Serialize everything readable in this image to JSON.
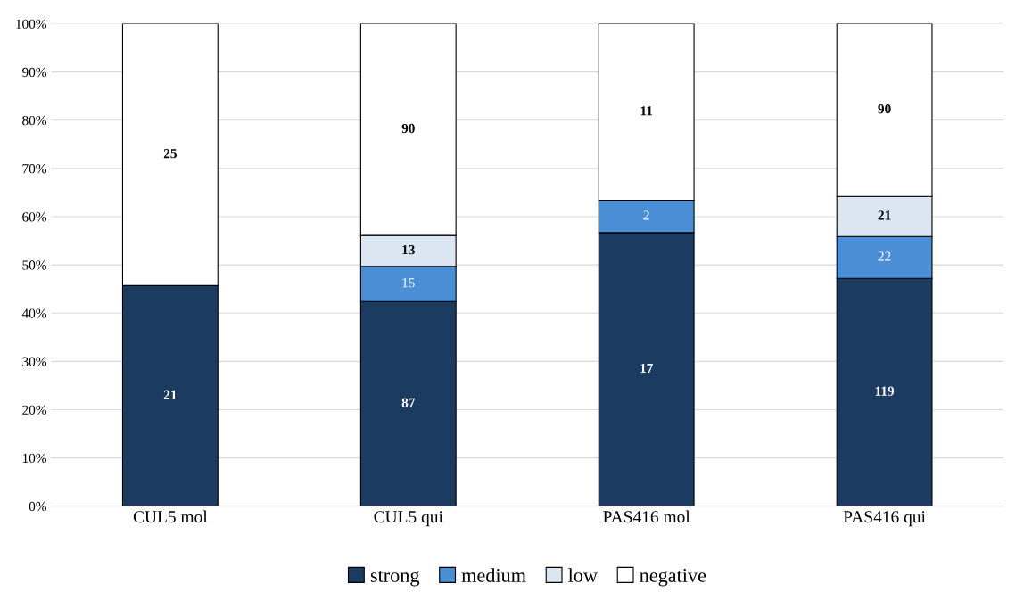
{
  "chart_data": {
    "type": "bar",
    "stacked": true,
    "categories": [
      "CUL5 mol",
      "CUL5 qui",
      "PAS416 mol",
      "PAS416 qui"
    ],
    "series": [
      {
        "name": "strong",
        "color": "#1b3b61",
        "values": [
          45.7,
          42.4,
          56.7,
          47.2
        ]
      },
      {
        "name": "medium",
        "color": "#4a8fd6",
        "values": [
          0,
          7.3,
          6.7,
          8.7
        ]
      },
      {
        "name": "low",
        "color": "#dce6f2",
        "values": [
          0,
          6.4,
          0,
          8.3
        ]
      },
      {
        "name": "negative",
        "color": "#ffffff",
        "values": [
          54.3,
          43.9,
          36.6,
          35.8
        ]
      }
    ],
    "annotations": [
      "21",
      "25",
      "87",
      "15",
      "13",
      "90",
      "17",
      "2",
      "11",
      "119",
      "22",
      "21",
      "90"
    ],
    "ylim": [
      0,
      100
    ],
    "yticks": [
      {
        "value": 0,
        "label": "0%"
      },
      {
        "value": 10,
        "label": "10%"
      },
      {
        "value": 20,
        "label": "20%"
      },
      {
        "value": 30,
        "label": "30%"
      },
      {
        "value": 40,
        "label": "40%"
      },
      {
        "value": 50,
        "label": "50%"
      },
      {
        "value": 60,
        "label": "60%"
      },
      {
        "value": 70,
        "label": "70%"
      },
      {
        "value": 80,
        "label": "80%"
      },
      {
        "value": 90,
        "label": "90%"
      },
      {
        "value": 100,
        "label": "100%"
      }
    ],
    "grid": "y",
    "legend": "bottom"
  }
}
